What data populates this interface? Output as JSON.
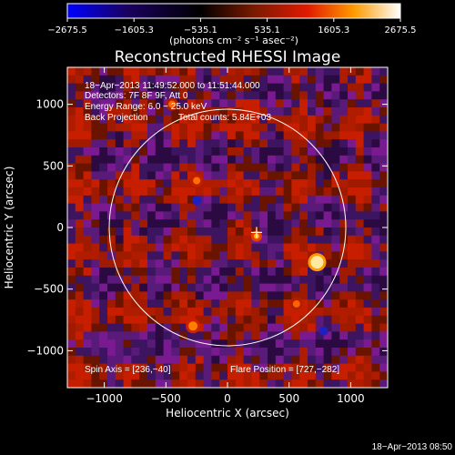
{
  "chart_data": {
    "type": "heatmap",
    "title": "Reconstructed RHESSI Image",
    "xlabel": "Heliocentric X (arcsec)",
    "ylabel": "Heliocentric Y (arcsec)",
    "xlim": [
      -1300,
      1300
    ],
    "ylim": [
      -1300,
      1300
    ],
    "xticks": [
      -1000,
      -500,
      0,
      500,
      1000
    ],
    "xtick_labels": [
      "−1000",
      "−500",
      "0",
      "500",
      "1000"
    ],
    "yticks": [
      -1000,
      -500,
      0,
      500,
      1000
    ],
    "ytick_labels": [
      "−1000",
      "−500",
      "0",
      "500",
      "1000"
    ],
    "colorbar": {
      "range": [
        -2675.5,
        2675.5
      ],
      "ticks": [
        -2675.5,
        -1605.3,
        -535.1,
        535.1,
        1605.3,
        2675.5
      ],
      "tick_labels": [
        "−2675.5",
        "−1605.3",
        "−535.1",
        "535.1",
        "1605.3",
        "2675.5"
      ],
      "colors": [
        "#0000ff",
        "#1a0060",
        "#000000",
        "#7a1a00",
        "#e01a00",
        "#ff9a00",
        "#ffffff"
      ],
      "unit_label": "(photons cm⁻² s⁻¹ asec⁻²)"
    },
    "solar_disk_radius_arcsec": 960,
    "flare_marker": {
      "x": 236,
      "y": -40,
      "marker": "+"
    },
    "bright_source": {
      "x": 727,
      "y": -282
    },
    "annotations": {
      "time_range": "18−Apr−2013 11:49:52.000 to 11:51:44.000",
      "detectors": "Detectors: 7F 8F 9F, Att 0",
      "energy_range": "Energy Range: 6.0 − 25.0 keV",
      "method": "Back Projection",
      "total_counts": "Total counts: 5.84E+03",
      "spin_axis": "Spin Axis = [236,−40]",
      "flare_position": "Flare Position = [727,−282]"
    },
    "footer_timestamp": "18−Apr−2013 08:50"
  }
}
